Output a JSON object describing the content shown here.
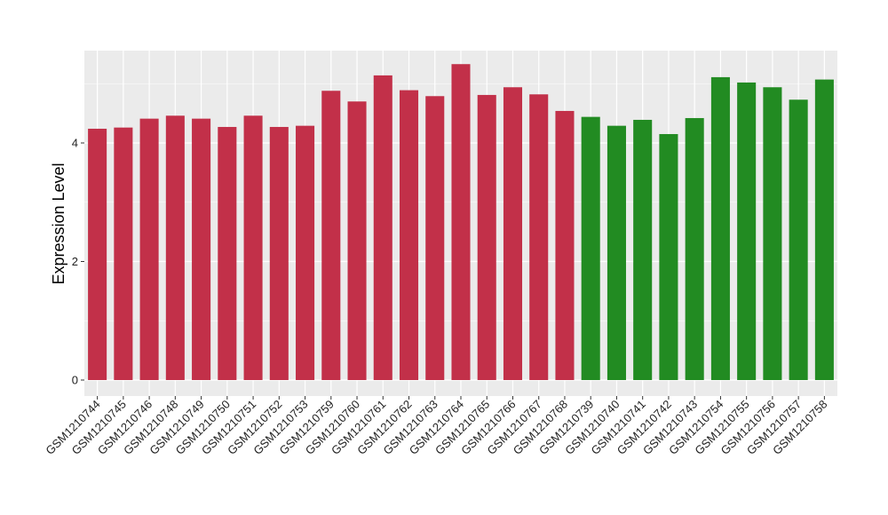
{
  "chart_data": {
    "type": "bar",
    "title": "",
    "xlabel": "",
    "ylabel": "Expression Level",
    "ylim": [
      0,
      5.55
    ],
    "yticks": [
      0,
      2,
      4
    ],
    "grid": true,
    "legend": "none",
    "colors": {
      "group1": "#c23049",
      "group2": "#228b22",
      "panel": "#ebebeb",
      "grid": "#ffffff"
    },
    "categories": [
      "GSM1210744",
      "GSM1210745",
      "GSM1210746",
      "GSM1210748",
      "GSM1210749",
      "GSM1210750",
      "GSM1210751",
      "GSM1210752",
      "GSM1210753",
      "GSM1210759",
      "GSM1210760",
      "GSM1210761",
      "GSM1210762",
      "GSM1210763",
      "GSM1210764",
      "GSM1210765",
      "GSM1210766",
      "GSM1210767",
      "GSM1210768",
      "GSM1210739",
      "GSM1210740",
      "GSM1210741",
      "GSM1210742",
      "GSM1210743",
      "GSM1210754",
      "GSM1210755",
      "GSM1210756",
      "GSM1210757",
      "GSM1210758"
    ],
    "values": [
      4.24,
      4.26,
      4.41,
      4.46,
      4.41,
      4.27,
      4.46,
      4.27,
      4.29,
      4.88,
      4.7,
      5.14,
      4.89,
      4.79,
      5.33,
      4.81,
      4.94,
      4.82,
      4.54,
      4.44,
      4.29,
      4.39,
      4.15,
      4.42,
      5.11,
      5.02,
      4.94,
      4.73,
      5.07
    ],
    "groups": [
      1,
      1,
      1,
      1,
      1,
      1,
      1,
      1,
      1,
      1,
      1,
      1,
      1,
      1,
      1,
      1,
      1,
      1,
      1,
      2,
      2,
      2,
      2,
      2,
      2,
      2,
      2,
      2,
      2
    ]
  }
}
